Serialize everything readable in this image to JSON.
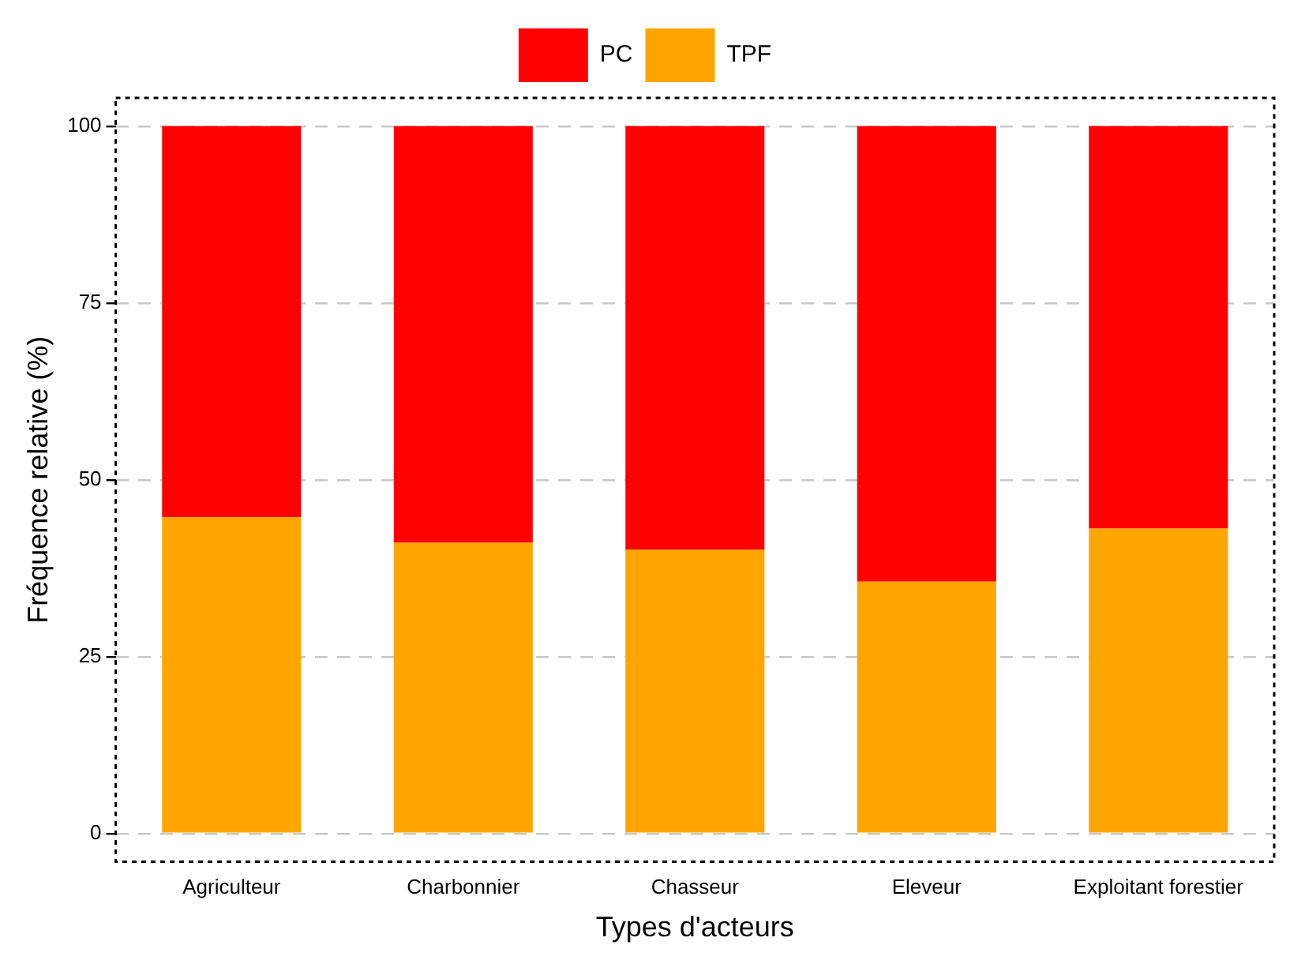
{
  "chart_data": {
    "type": "bar",
    "stacked": true,
    "xlabel": "Types d'acteurs",
    "ylabel": "Fréquence relative (%)",
    "categories": [
      "Agriculteur",
      "Charbonnier",
      "Chasseur",
      "Eleveur",
      "Exploitant forestier"
    ],
    "series": [
      {
        "name": "TPF",
        "color": "#ffa500",
        "values": [
          44.7,
          41.1,
          40.1,
          35.6,
          43.1
        ]
      },
      {
        "name": "PC",
        "color": "#ff0000",
        "values": [
          55.3,
          58.9,
          59.9,
          64.4,
          56.9
        ]
      }
    ],
    "ylim": [
      -4,
      104
    ],
    "yticks": [
      0,
      25,
      50,
      75,
      100
    ],
    "grid": "y",
    "legend": "top"
  }
}
